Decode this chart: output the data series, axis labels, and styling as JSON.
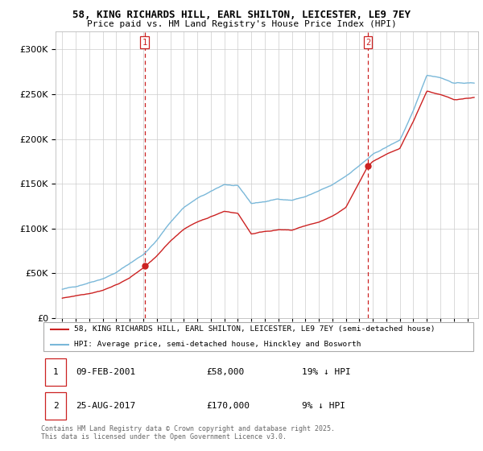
{
  "title1": "58, KING RICHARDS HILL, EARL SHILTON, LEICESTER, LE9 7EY",
  "title2": "Price paid vs. HM Land Registry's House Price Index (HPI)",
  "legend_line1": "58, KING RICHARDS HILL, EARL SHILTON, LEICESTER, LE9 7EY (semi-detached house)",
  "legend_line2": "HPI: Average price, semi-detached house, Hinckley and Bosworth",
  "footer": "Contains HM Land Registry data © Crown copyright and database right 2025.\nThis data is licensed under the Open Government Licence v3.0.",
  "hpi_color": "#7ab8d9",
  "price_color": "#cc2222",
  "dashed_color": "#cc2222",
  "ylim": [
    0,
    320000
  ],
  "yticks": [
    0,
    50000,
    100000,
    150000,
    200000,
    250000,
    300000
  ],
  "sale1_year": 2001.1,
  "sale1_price": 58000,
  "sale2_year": 2017.64,
  "sale2_price": 170000,
  "ann1_date": "09-FEB-2001",
  "ann1_price": "£58,000",
  "ann1_note": "19% ↓ HPI",
  "ann2_date": "25-AUG-2017",
  "ann2_price": "£170,000",
  "ann2_note": "9% ↓ HPI"
}
